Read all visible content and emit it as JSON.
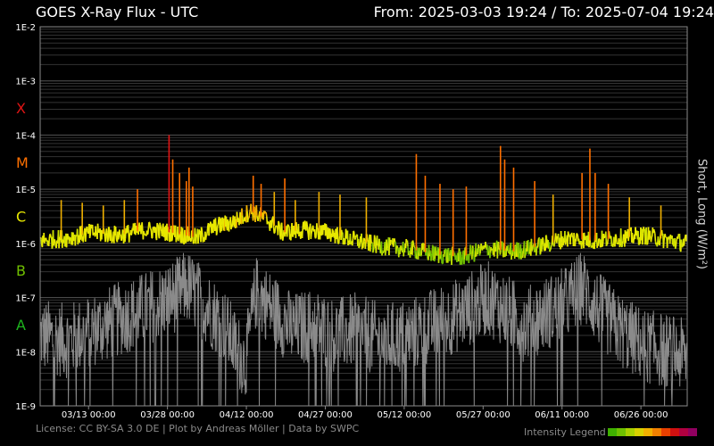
{
  "header": {
    "title": "GOES X-Ray Flux - UTC",
    "range": "From: 2025-03-03 19:24  /  To: 2025-07-04 19:24"
  },
  "footer": {
    "license": "License: CC BY-SA 3.0 DE | Plot by Andreas Möller | Data by SWPC",
    "legend_label": "Intensity Legend",
    "legend_colors": [
      "#3fb000",
      "#6ec000",
      "#a8d000",
      "#d8d000",
      "#f0b000",
      "#f08000",
      "#e84000",
      "#d01010",
      "#b00040",
      "#900060"
    ]
  },
  "chart_data": {
    "type": "line",
    "y_scale": "log",
    "ylim": [
      1e-09,
      0.01
    ],
    "ylabel": "Short, Long (W/m²)",
    "y_ticks": [
      "1E-9",
      "1E-8",
      "1E-7",
      "1E-6",
      "1E-5",
      "1E-4",
      "1E-3",
      "1E-2"
    ],
    "flare_classes": [
      {
        "label": "A",
        "color": "#1db41d"
      },
      {
        "label": "B",
        "color": "#70c000"
      },
      {
        "label": "C",
        "color": "#e8e800"
      },
      {
        "label": "M",
        "color": "#ff7000"
      },
      {
        "label": "X",
        "color": "#e01414"
      }
    ],
    "x_ticks": [
      "03/13 00:00",
      "03/28 00:00",
      "04/12 00:00",
      "04/27 00:00",
      "05/12 00:00",
      "05/27 00:00",
      "06/11 00:00",
      "06/26 00:00"
    ],
    "x_tick_days": [
      9.2,
      24.2,
      39.2,
      54.2,
      69.2,
      84.2,
      99.2,
      114.2
    ],
    "x_range_days": [
      0,
      123
    ],
    "grid": true,
    "long_baseline_log": [
      [
        0,
        -5.95
      ],
      [
        5,
        -5.9
      ],
      [
        10,
        -5.8
      ],
      [
        15,
        -5.85
      ],
      [
        20,
        -5.75
      ],
      [
        25,
        -5.8
      ],
      [
        30,
        -5.9
      ],
      [
        33,
        -5.7
      ],
      [
        37,
        -5.6
      ],
      [
        40,
        -5.4
      ],
      [
        43,
        -5.55
      ],
      [
        46,
        -5.8
      ],
      [
        50,
        -5.75
      ],
      [
        55,
        -5.8
      ],
      [
        60,
        -5.95
      ],
      [
        65,
        -6.05
      ],
      [
        70,
        -6.1
      ],
      [
        75,
        -6.2
      ],
      [
        80,
        -6.25
      ],
      [
        85,
        -6.1
      ],
      [
        90,
        -6.15
      ],
      [
        95,
        -6.05
      ],
      [
        100,
        -5.9
      ],
      [
        105,
        -5.95
      ],
      [
        110,
        -5.9
      ],
      [
        115,
        -5.85
      ],
      [
        120,
        -5.95
      ],
      [
        123,
        -6.0
      ]
    ],
    "short_baseline_log": [
      [
        0,
        -7.7
      ],
      [
        5,
        -7.8
      ],
      [
        10,
        -7.6
      ],
      [
        15,
        -7.4
      ],
      [
        20,
        -7.2
      ],
      [
        25,
        -7.0
      ],
      [
        28,
        -6.8
      ],
      [
        31,
        -7.1
      ],
      [
        35,
        -7.5
      ],
      [
        37,
        -7.9
      ],
      [
        39,
        -8.2
      ],
      [
        41,
        -6.9
      ],
      [
        44,
        -7.2
      ],
      [
        48,
        -7.6
      ],
      [
        52,
        -7.5
      ],
      [
        56,
        -7.7
      ],
      [
        60,
        -7.6
      ],
      [
        65,
        -7.8
      ],
      [
        70,
        -7.7
      ],
      [
        75,
        -7.5
      ],
      [
        80,
        -7.3
      ],
      [
        85,
        -7.0
      ],
      [
        88,
        -7.2
      ],
      [
        92,
        -7.5
      ],
      [
        96,
        -7.3
      ],
      [
        100,
        -7.1
      ],
      [
        103,
        -6.8
      ],
      [
        106,
        -7.2
      ],
      [
        110,
        -7.6
      ],
      [
        115,
        -7.9
      ],
      [
        120,
        -8.0
      ],
      [
        123,
        -8.1
      ]
    ],
    "flares": [
      {
        "day": 24.5,
        "log": -4.0
      },
      {
        "day": 25.2,
        "log": -4.45
      },
      {
        "day": 26.5,
        "log": -4.7
      },
      {
        "day": 27.8,
        "log": -4.85
      },
      {
        "day": 28.3,
        "log": -4.6
      },
      {
        "day": 29.0,
        "log": -4.95
      },
      {
        "day": 18.5,
        "log": -5.0
      },
      {
        "day": 16.0,
        "log": -5.2
      },
      {
        "day": 12.0,
        "log": -5.3
      },
      {
        "day": 4.0,
        "log": -5.2
      },
      {
        "day": 8.0,
        "log": -5.25
      },
      {
        "day": 40.5,
        "log": -4.75
      },
      {
        "day": 42.0,
        "log": -4.9
      },
      {
        "day": 44.5,
        "log": -5.05
      },
      {
        "day": 46.5,
        "log": -4.8
      },
      {
        "day": 48.5,
        "log": -5.2
      },
      {
        "day": 53.0,
        "log": -5.05
      },
      {
        "day": 57.0,
        "log": -5.1
      },
      {
        "day": 62.0,
        "log": -5.15
      },
      {
        "day": 71.5,
        "log": -4.35
      },
      {
        "day": 73.2,
        "log": -4.75
      },
      {
        "day": 76.0,
        "log": -4.9
      },
      {
        "day": 78.5,
        "log": -5.0
      },
      {
        "day": 81.0,
        "log": -4.95
      },
      {
        "day": 87.5,
        "log": -4.2
      },
      {
        "day": 88.3,
        "log": -4.45
      },
      {
        "day": 90.0,
        "log": -4.6
      },
      {
        "day": 94.0,
        "log": -4.85
      },
      {
        "day": 97.5,
        "log": -5.1
      },
      {
        "day": 103.0,
        "log": -4.7
      },
      {
        "day": 104.5,
        "log": -4.25
      },
      {
        "day": 105.5,
        "log": -4.7
      },
      {
        "day": 108.0,
        "log": -4.9
      },
      {
        "day": 112.0,
        "log": -5.15
      },
      {
        "day": 118.0,
        "log": -5.3
      }
    ]
  }
}
